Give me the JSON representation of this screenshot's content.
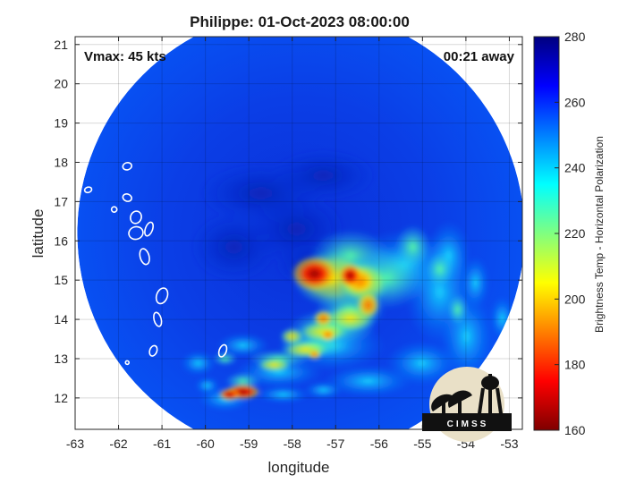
{
  "figure": {
    "title": "Philippe: 01-Oct-2023 08:00:00",
    "vmax_label": "Vmax: 45 kts",
    "time_away_label": "00:21 away",
    "logo_text": "CIMSS"
  },
  "map_data": {
    "xlabel": "longitude",
    "ylabel": "latitude",
    "xlim": [
      -63,
      -52.7
    ],
    "ylim": [
      11.2,
      21.2
    ],
    "x_ticks": [
      "-63",
      "-62",
      "-61",
      "-60",
      "-59",
      "-58",
      "-57",
      "-56",
      "-55",
      "-54",
      "-53"
    ],
    "y_ticks": [
      "12",
      "13",
      "14",
      "15",
      "16",
      "17",
      "18",
      "19",
      "20",
      "21"
    ],
    "grid": true,
    "swath_center": {
      "lon": -57.8,
      "lat": 16.2
    },
    "storm_center": {
      "lon": -57.9,
      "lat": 16.3
    },
    "cold_cores": [
      {
        "lon": -57.1,
        "lat": 15.3,
        "tb": 165
      },
      {
        "lon": -56.3,
        "lat": 14.9,
        "tb": 185
      },
      {
        "lon": -58.9,
        "lat": 12.5,
        "tb": 175
      },
      {
        "lon": -56.6,
        "lat": 13.8,
        "tb": 200
      },
      {
        "lon": -57.3,
        "lat": 13.5,
        "tb": 205
      }
    ],
    "islands": [
      "island-guadeloupe",
      "island-dominica",
      "island-martinique",
      "island-st-lucia",
      "island-st-vincent",
      "island-grenada",
      "island-antigua",
      "island-montserrat"
    ]
  },
  "colorbar": {
    "label": "Brightness Temp - Horizontal Polarization",
    "min": 160,
    "max": 280,
    "ticks": [
      "160",
      "180",
      "200",
      "220",
      "240",
      "260",
      "280"
    ],
    "colormap": "jet",
    "colors": {
      "c160": "#7f0000",
      "c180": "#ff0000",
      "c200": "#ffbf00",
      "c220": "#80ff80",
      "c240": "#00bfff",
      "c260": "#0040ff",
      "c280": "#00007f"
    }
  }
}
